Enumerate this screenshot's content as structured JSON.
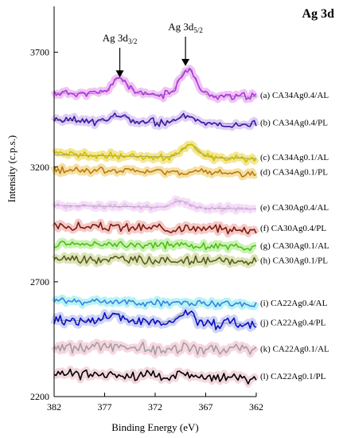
{
  "chart_data": {
    "type": "line",
    "title": "Ag 3d",
    "xlabel": "Binding Energy (eV)",
    "ylabel": "Intensity (c.p.s.)",
    "xlim": [
      382,
      362
    ],
    "ylim": [
      2200,
      3900
    ],
    "x_reversed": true,
    "xticks": [
      382,
      377,
      372,
      367,
      362
    ],
    "yticks": [
      2200,
      2700,
      3200,
      3700
    ],
    "grid": false,
    "legend": "labels at right end of each curve",
    "annotations": [
      {
        "text_main": "Ag 3d",
        "text_sub": "3/2",
        "x": 375.5,
        "arrow_to_y": 3590
      },
      {
        "text_main": "Ag 3d",
        "text_sub": "5/2",
        "x": 369.0,
        "arrow_to_y": 3640
      }
    ],
    "series": [
      {
        "label": "(a) CA34Ag0.4/AL",
        "color": "#b133e0",
        "band": "#ecb8f3",
        "baseline": 3515,
        "peaks": [
          [
            375.5,
            70
          ],
          [
            368.8,
            115
          ]
        ],
        "noise": 13,
        "seed": 11
      },
      {
        "label": "(b) CA34Ag0.4/PL",
        "color": "#3d16a8",
        "band": "#d8c7f5",
        "baseline": 3395,
        "peaks": [
          [
            375.5,
            25
          ],
          [
            368.8,
            30
          ]
        ],
        "noise": 14,
        "seed": 23
      },
      {
        "label": "(c) CA34Ag0.1/AL",
        "color": "#c9c000",
        "band": "#f2e27f",
        "baseline": 3245,
        "peaks": [
          [
            368.5,
            55
          ]
        ],
        "noise": 12,
        "seed": 37
      },
      {
        "label": "(d) CA34Ag0.1/PL",
        "color": "#b87a12",
        "band": "#f5d98f",
        "baseline": 3180,
        "peaks": [],
        "noise": 13,
        "seed": 41
      },
      {
        "label": "(e) CA30Ag0.4/AL",
        "color": "#e2b8ee",
        "band": "#f3d9f6",
        "baseline": 3025,
        "peaks": [
          [
            369.5,
            30
          ]
        ],
        "noise": 10,
        "seed": 53
      },
      {
        "label": "(f) CA30Ag0.4/PL",
        "color": "#7d1a10",
        "band": "#f2c0bc",
        "baseline": 2935,
        "peaks": [],
        "noise": 15,
        "seed": 67
      },
      {
        "label": "(g) CA30Ag0.1/AL",
        "color": "#4fbf14",
        "band": "#bff0a6",
        "baseline": 2860,
        "peaks": [],
        "noise": 12,
        "seed": 71
      },
      {
        "label": "(h) CA30Ag0.1/PL",
        "color": "#5c5a22",
        "band": "#d7e0aa",
        "baseline": 2795,
        "peaks": [],
        "noise": 15,
        "seed": 83
      },
      {
        "label": "(i) CA22Ag0.4/AL",
        "color": "#3f7fe0",
        "band": "#a8f2f2",
        "baseline": 2610,
        "peaks": [],
        "noise": 12,
        "seed": 97
      },
      {
        "label": "(j) CA22Ag0.4/PL",
        "color": "#0d0ec7",
        "band": "#c5cdf5",
        "baseline": 2525,
        "peaks": [
          [
            376,
            30
          ],
          [
            369,
            45
          ]
        ],
        "noise": 20,
        "seed": 101
      },
      {
        "label": "(k) CA22Ag0.1/AL",
        "color": "#a0a0a0",
        "band": "#f6cfd9",
        "baseline": 2410,
        "peaks": [],
        "noise": 20,
        "seed": 113
      },
      {
        "label": "(l) CA22Ag0.1/PL",
        "color": "#000000",
        "band": "#f0d0d8",
        "baseline": 2290,
        "peaks": [],
        "noise": 20,
        "seed": 127
      }
    ]
  }
}
